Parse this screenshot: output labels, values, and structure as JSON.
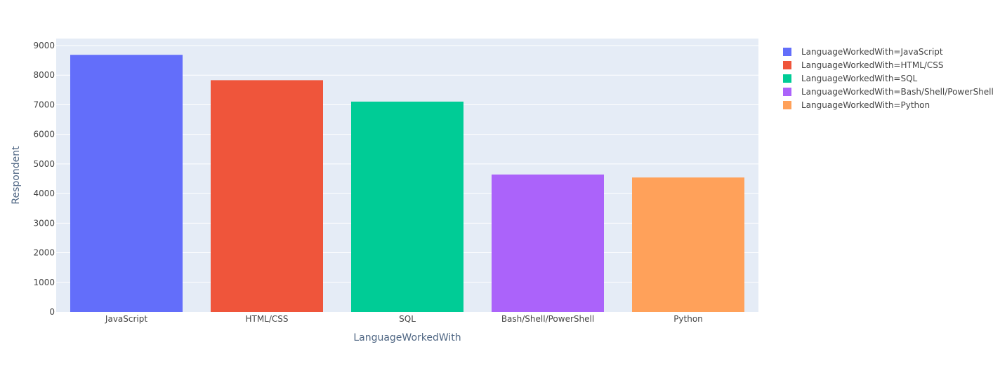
{
  "chart_data": {
    "type": "bar",
    "xlabel": "LanguageWorkedWith",
    "ylabel": "Respondent",
    "ylim": [
      0,
      9000
    ],
    "yticks": [
      0,
      1000,
      2000,
      3000,
      4000,
      5000,
      6000,
      7000,
      8000,
      9000
    ],
    "categories": [
      "JavaScript",
      "HTML/CSS",
      "SQL",
      "Bash/Shell/PowerShell",
      "Python"
    ],
    "series": [
      {
        "name": "LanguageWorkedWith=JavaScript",
        "category": "JavaScript",
        "value": 8687,
        "color": "#636efa"
      },
      {
        "name": "LanguageWorkedWith=HTML/CSS",
        "category": "HTML/CSS",
        "value": 7830,
        "color": "#ef553b"
      },
      {
        "name": "LanguageWorkedWith=SQL",
        "category": "SQL",
        "value": 7106,
        "color": "#00cc96"
      },
      {
        "name": "LanguageWorkedWith=Bash/Shell/PowerShell",
        "category": "Bash/Shell/PowerShell",
        "value": 4642,
        "color": "#ab63fa"
      },
      {
        "name": "LanguageWorkedWith=Python",
        "category": "Python",
        "value": 4542,
        "color": "#ffa15a"
      }
    ],
    "grid": true,
    "legend_position": "top-right",
    "plot_background": "#e5ecf6"
  }
}
